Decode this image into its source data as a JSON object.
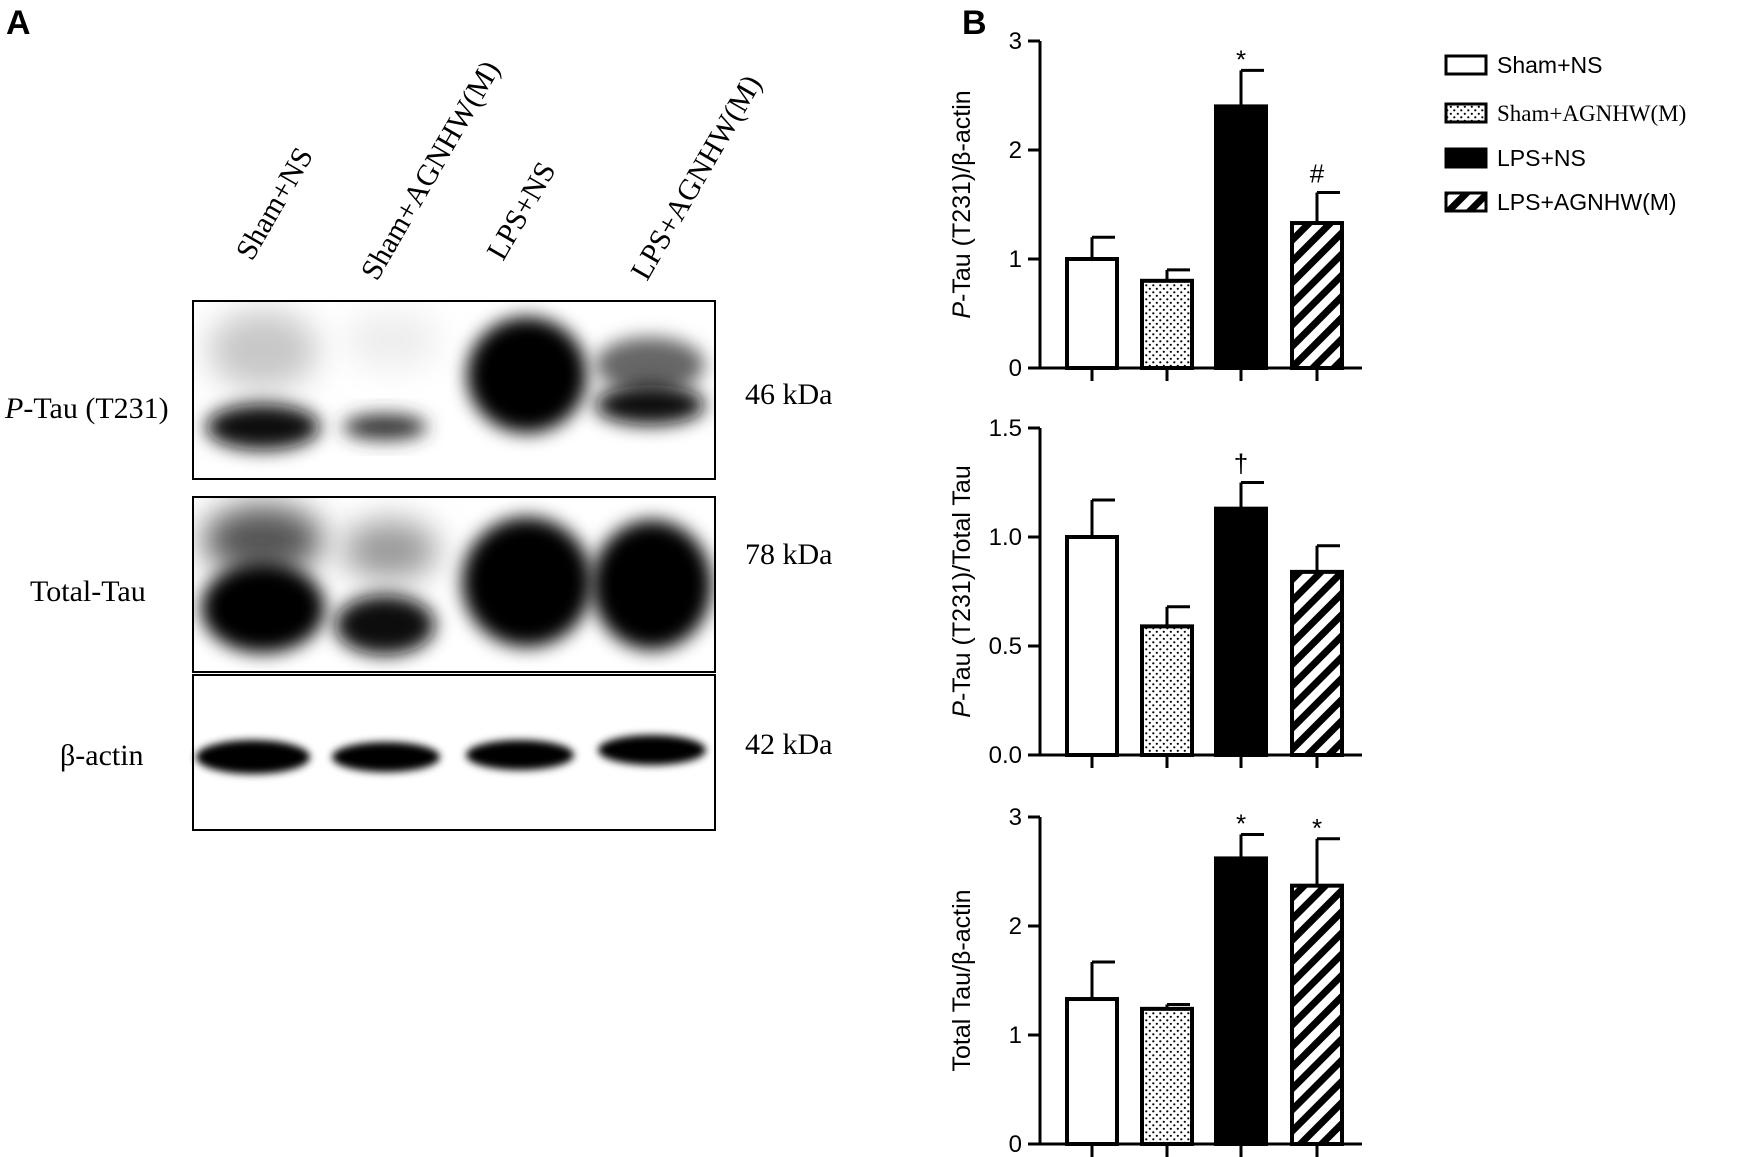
{
  "panels": {
    "a": "A",
    "b": "B"
  },
  "blot": {
    "lanes": [
      "Sham+NS",
      "Sham+AGNHW(M)",
      "LPS+NS",
      "LPS+AGNHW(M)"
    ],
    "rows": [
      {
        "label_italic": "P",
        "label_rest": "-Tau (T231)",
        "kda": "46 kDa"
      },
      {
        "label_italic": "",
        "label_rest": "Total-Tau",
        "kda": "78 kDa"
      },
      {
        "label_italic": "",
        "label_rest": "β-actin",
        "kda": "42 kDa"
      }
    ]
  },
  "legend": {
    "items": [
      {
        "label": "Sham+NS",
        "pattern": "open",
        "font": "sans"
      },
      {
        "label": "Sham+AGNHW(M)",
        "pattern": "dotted",
        "font": "serif"
      },
      {
        "label": "LPS+NS",
        "pattern": "solid",
        "font": "sans"
      },
      {
        "label": "LPS+AGNHW(M)",
        "pattern": "hatched",
        "font": "sans"
      }
    ]
  },
  "chart_data": [
    {
      "type": "bar",
      "categories": [
        "Sham+NS",
        "Sham+AGNHW(M)",
        "LPS+NS",
        "LPS+AGNHW(M)"
      ],
      "values": [
        1.0,
        0.8,
        2.4,
        1.33
      ],
      "errors": [
        0.2,
        0.1,
        0.33,
        0.28
      ],
      "annotations": [
        "",
        "",
        "*",
        "#"
      ],
      "ylabel_italic": "P",
      "ylabel_rest": "-Tau (T231)/β-actin",
      "ylim": [
        0,
        3
      ],
      "yticks": [
        "0",
        "1",
        "2",
        "3"
      ]
    },
    {
      "type": "bar",
      "categories": [
        "Sham+NS",
        "Sham+AGNHW(M)",
        "LPS+NS",
        "LPS+AGNHW(M)"
      ],
      "values": [
        1.0,
        0.59,
        1.13,
        0.84
      ],
      "errors": [
        0.17,
        0.09,
        0.12,
        0.12
      ],
      "annotations": [
        "",
        "",
        "†",
        ""
      ],
      "ylabel_italic": "P",
      "ylabel_rest": "-Tau (T231)/Total Tau",
      "ylim": [
        0,
        1.5
      ],
      "yticks": [
        "0.0",
        "0.5",
        "1.0",
        "1.5"
      ]
    },
    {
      "type": "bar",
      "categories": [
        "Sham+NS",
        "Sham+AGNHW(M)",
        "LPS+NS",
        "LPS+AGNHW(M)"
      ],
      "values": [
        1.33,
        1.24,
        2.62,
        2.37
      ],
      "errors": [
        0.34,
        0.04,
        0.22,
        0.43
      ],
      "annotations": [
        "",
        "",
        "*",
        "*"
      ],
      "ylabel_italic": "",
      "ylabel_rest": "Total Tau/β-actin",
      "ylim": [
        0,
        3
      ],
      "yticks": [
        "0",
        "1",
        "2",
        "3"
      ]
    }
  ]
}
